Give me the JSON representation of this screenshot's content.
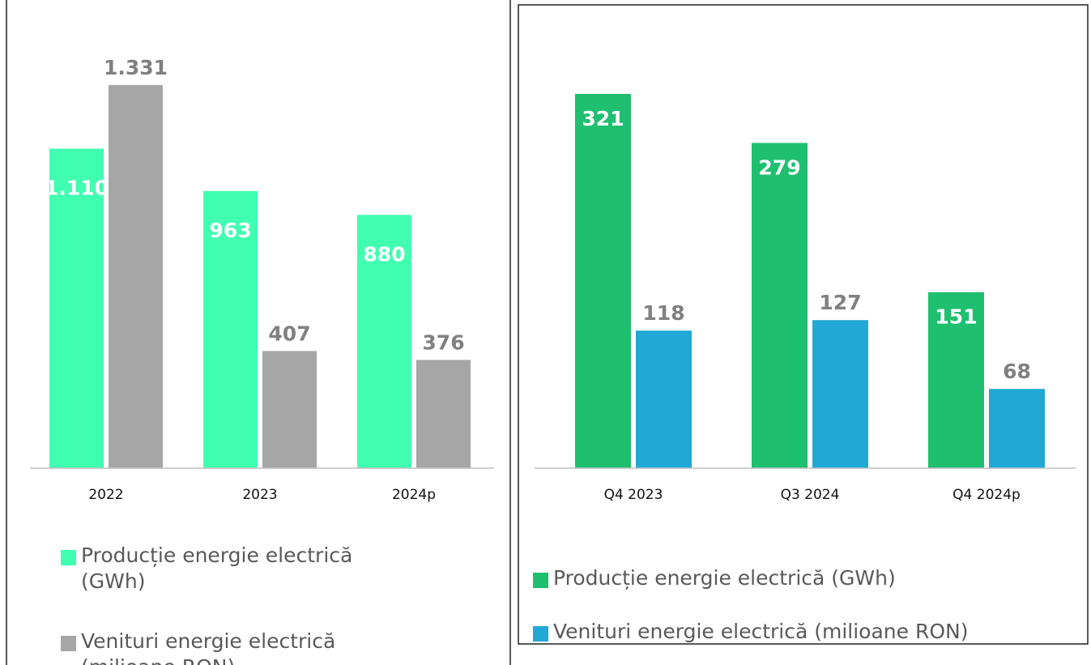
{
  "chart_data": [
    {
      "type": "bar",
      "categories": [
        "2022",
        "2023",
        "2024p"
      ],
      "series": [
        {
          "name": "Producție energie electrică (GWh)",
          "color": "#40ffb0",
          "values": [
            1110,
            963,
            880
          ],
          "value_labels": [
            "1.110",
            "963",
            "880"
          ]
        },
        {
          "name": "Venituri energie electrică (milioane RON)",
          "color": "#a6a6a6",
          "values": [
            1331,
            407,
            376
          ],
          "value_labels": [
            "1.331",
            "407",
            "376"
          ]
        }
      ]
    },
    {
      "type": "bar",
      "categories": [
        "Q4 2023",
        "Q3 2024",
        "Q4 2024p"
      ],
      "series": [
        {
          "name": "Producție energie electrică (GWh)",
          "color": "#1fbf70",
          "values": [
            321,
            279,
            151
          ]
        },
        {
          "name": "Venituri energie electrică (milioane RON)",
          "color": "#22a8d4",
          "values": [
            118,
            127,
            68
          ]
        }
      ]
    }
  ]
}
